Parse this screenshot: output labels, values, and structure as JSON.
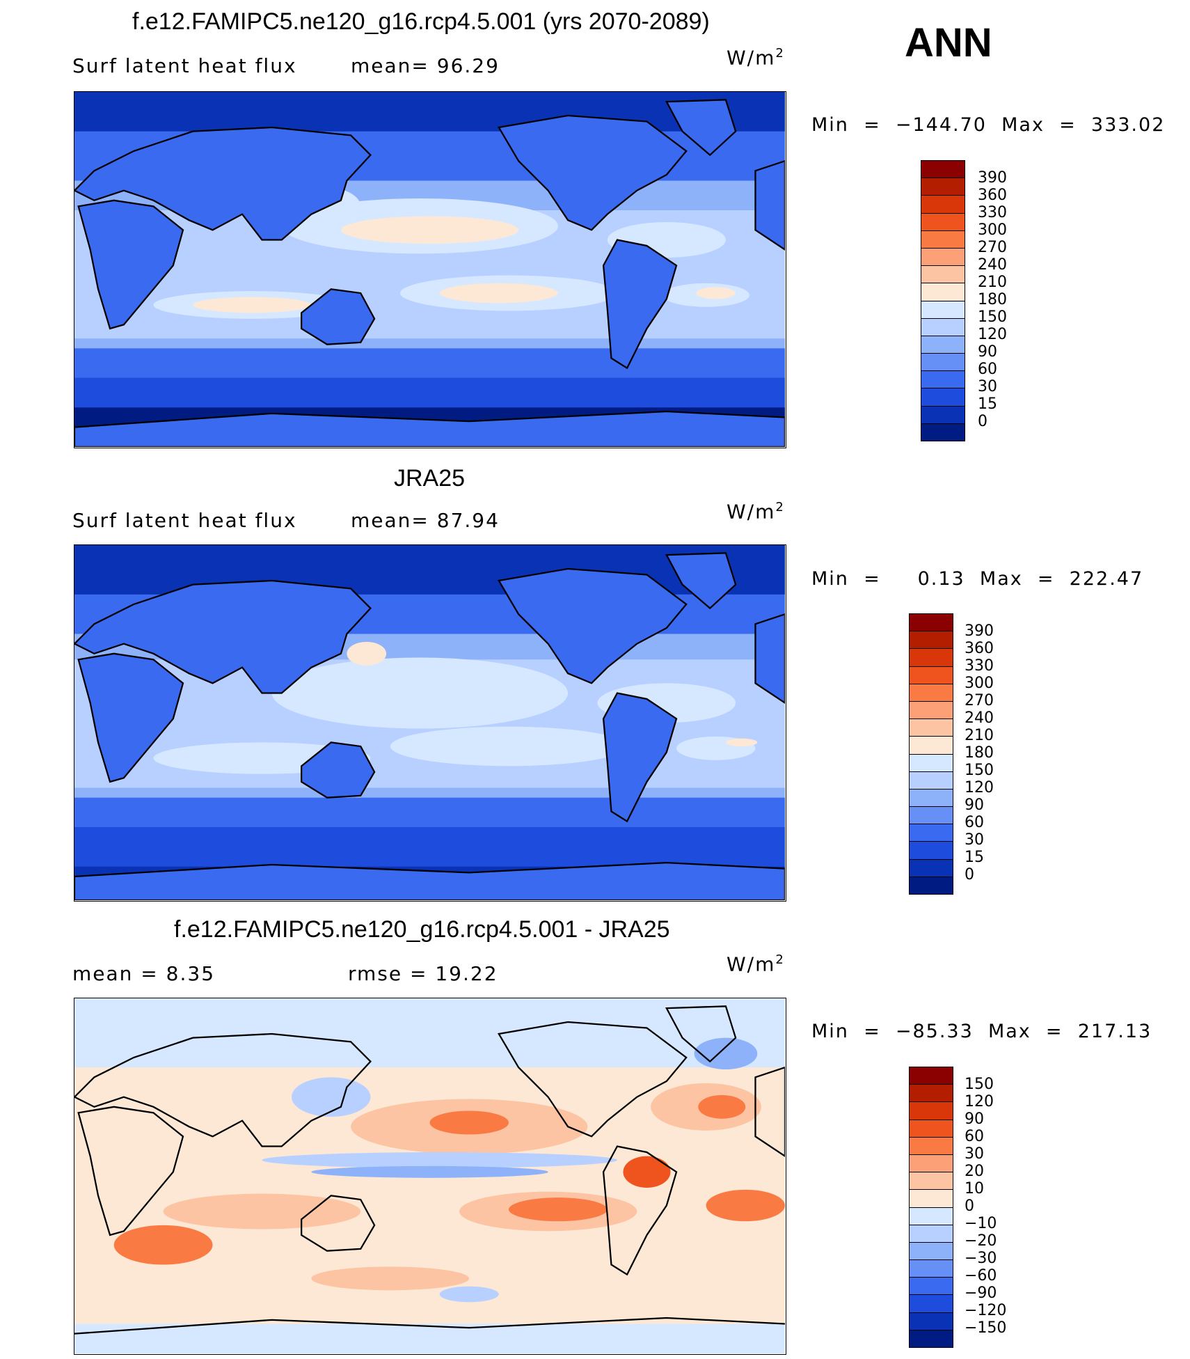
{
  "season": "ANN",
  "panels": [
    {
      "title": "f.e12.FAMIPC5.ne120_g16.rcp4.5.001 (yrs 2070-2089)",
      "left_label": "Surf  latent  heat  flux",
      "mid_label": "mean=   96.29",
      "units_base": "W/m",
      "units_exp": "2",
      "minmax": "Min  =  −144.70  Max  =  333.02",
      "colorbar": {
        "labels": [
          "390",
          "360",
          "330",
          "300",
          "270",
          "240",
          "210",
          "180",
          "150",
          "120",
          "90",
          "60",
          "30",
          "15",
          "0"
        ],
        "colors": [
          "#8b0000",
          "#b41e00",
          "#d9360a",
          "#f0541e",
          "#fa7a44",
          "#fca078",
          "#fdc4a4",
          "#fde8d6",
          "#d6e8ff",
          "#b8d0ff",
          "#8eb2fa",
          "#6690f6",
          "#3a6af0",
          "#1e4cdc",
          "#0a32b4",
          "#001c82"
        ]
      }
    },
    {
      "title": "JRA25",
      "left_label": "Surf  latent  heat  flux",
      "mid_label": "mean=   87.94",
      "units_base": "W/m",
      "units_exp": "2",
      "minmax": "Min  =     0.13  Max  =  222.47",
      "colorbar": {
        "labels": [
          "390",
          "360",
          "330",
          "300",
          "270",
          "240",
          "210",
          "180",
          "150",
          "120",
          "90",
          "60",
          "30",
          "15",
          "0"
        ],
        "colors": [
          "#8b0000",
          "#b41e00",
          "#d9360a",
          "#f0541e",
          "#fa7a44",
          "#fca078",
          "#fdc4a4",
          "#fde8d6",
          "#d6e8ff",
          "#b8d0ff",
          "#8eb2fa",
          "#6690f6",
          "#3a6af0",
          "#1e4cdc",
          "#0a32b4",
          "#001c82"
        ]
      }
    },
    {
      "title": "f.e12.FAMIPC5.ne120_g16.rcp4.5.001 - JRA25",
      "left_label": "mean  =     8.35",
      "mid_label": "rmse  =    19.22",
      "units_base": "W/m",
      "units_exp": "2",
      "minmax": "Min  =  −85.33  Max  =  217.13",
      "colorbar": {
        "labels": [
          "150",
          "120",
          "90",
          "60",
          "30",
          "20",
          "10",
          "0",
          "−10",
          "−20",
          "−30",
          "−60",
          "−90",
          "−120",
          "−150"
        ],
        "colors": [
          "#8b0000",
          "#b41e00",
          "#d9360a",
          "#f0541e",
          "#fa7a44",
          "#fca078",
          "#fdc4a4",
          "#fde8d6",
          "#d6e8ff",
          "#b8d0ff",
          "#8eb2fa",
          "#6690f6",
          "#3a6af0",
          "#1e4cdc",
          "#0a32b4",
          "#001c82"
        ]
      }
    }
  ]
}
